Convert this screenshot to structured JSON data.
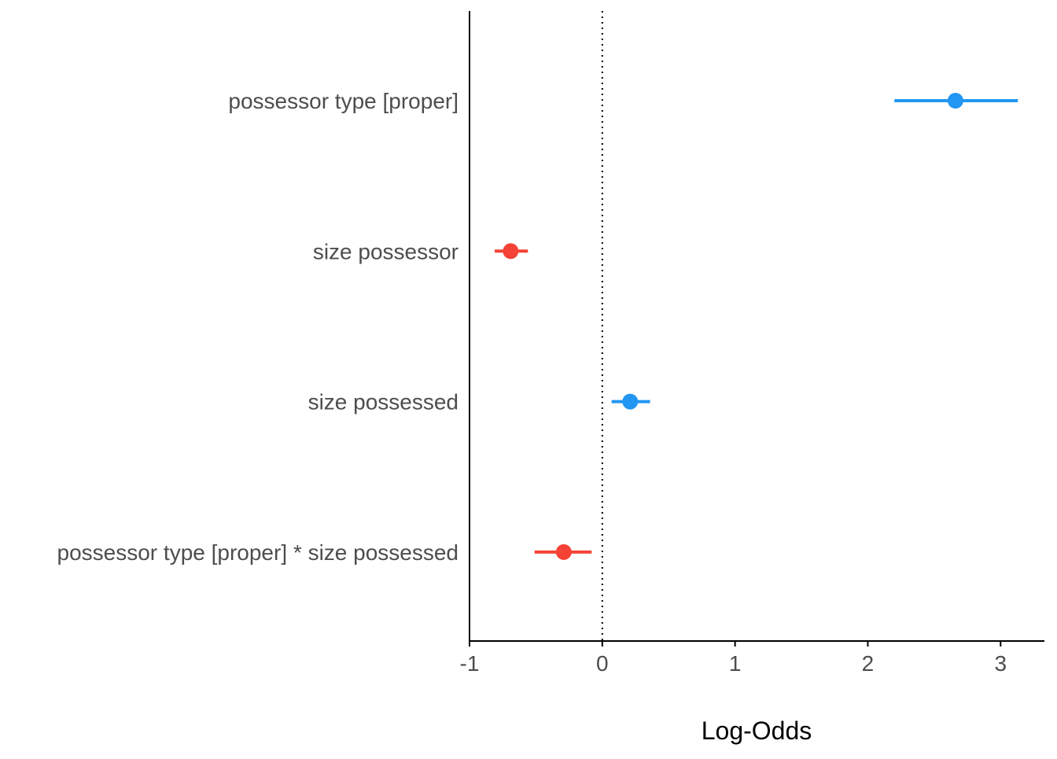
{
  "chart_data": {
    "type": "scatter",
    "subtype": "coefficient-plot",
    "title": "",
    "xlabel": "Log-Odds",
    "ylabel": "",
    "xlim": [
      -1,
      3.33
    ],
    "xticks": [
      -1,
      0,
      1,
      2,
      3
    ],
    "xtick_labels": [
      "-1",
      "0",
      "1",
      "2",
      "3"
    ],
    "reference_line": {
      "x": 0,
      "style": "dotted"
    },
    "grid": false,
    "legend": "none",
    "categories": [
      "possessor type [proper]",
      "size possessor",
      "size possessed",
      "possessor type [proper] * size possessed"
    ],
    "estimates": [
      {
        "term": "possessor type [proper]",
        "estimate": 2.66,
        "ci_low": 2.2,
        "ci_high": 3.13,
        "color": "#2196F3"
      },
      {
        "term": "size possessor",
        "estimate": -0.69,
        "ci_low": -0.81,
        "ci_high": -0.56,
        "color": "#F44336"
      },
      {
        "term": "size possessed",
        "estimate": 0.21,
        "ci_low": 0.07,
        "ci_high": 0.36,
        "color": "#2196F3"
      },
      {
        "term": "possessor type [proper] * size possessed",
        "estimate": -0.29,
        "ci_low": -0.51,
        "ci_high": -0.08,
        "color": "#F44336"
      }
    ],
    "colors": {
      "positive": "#2196F3",
      "negative": "#F44336",
      "axis": "#000000"
    }
  }
}
